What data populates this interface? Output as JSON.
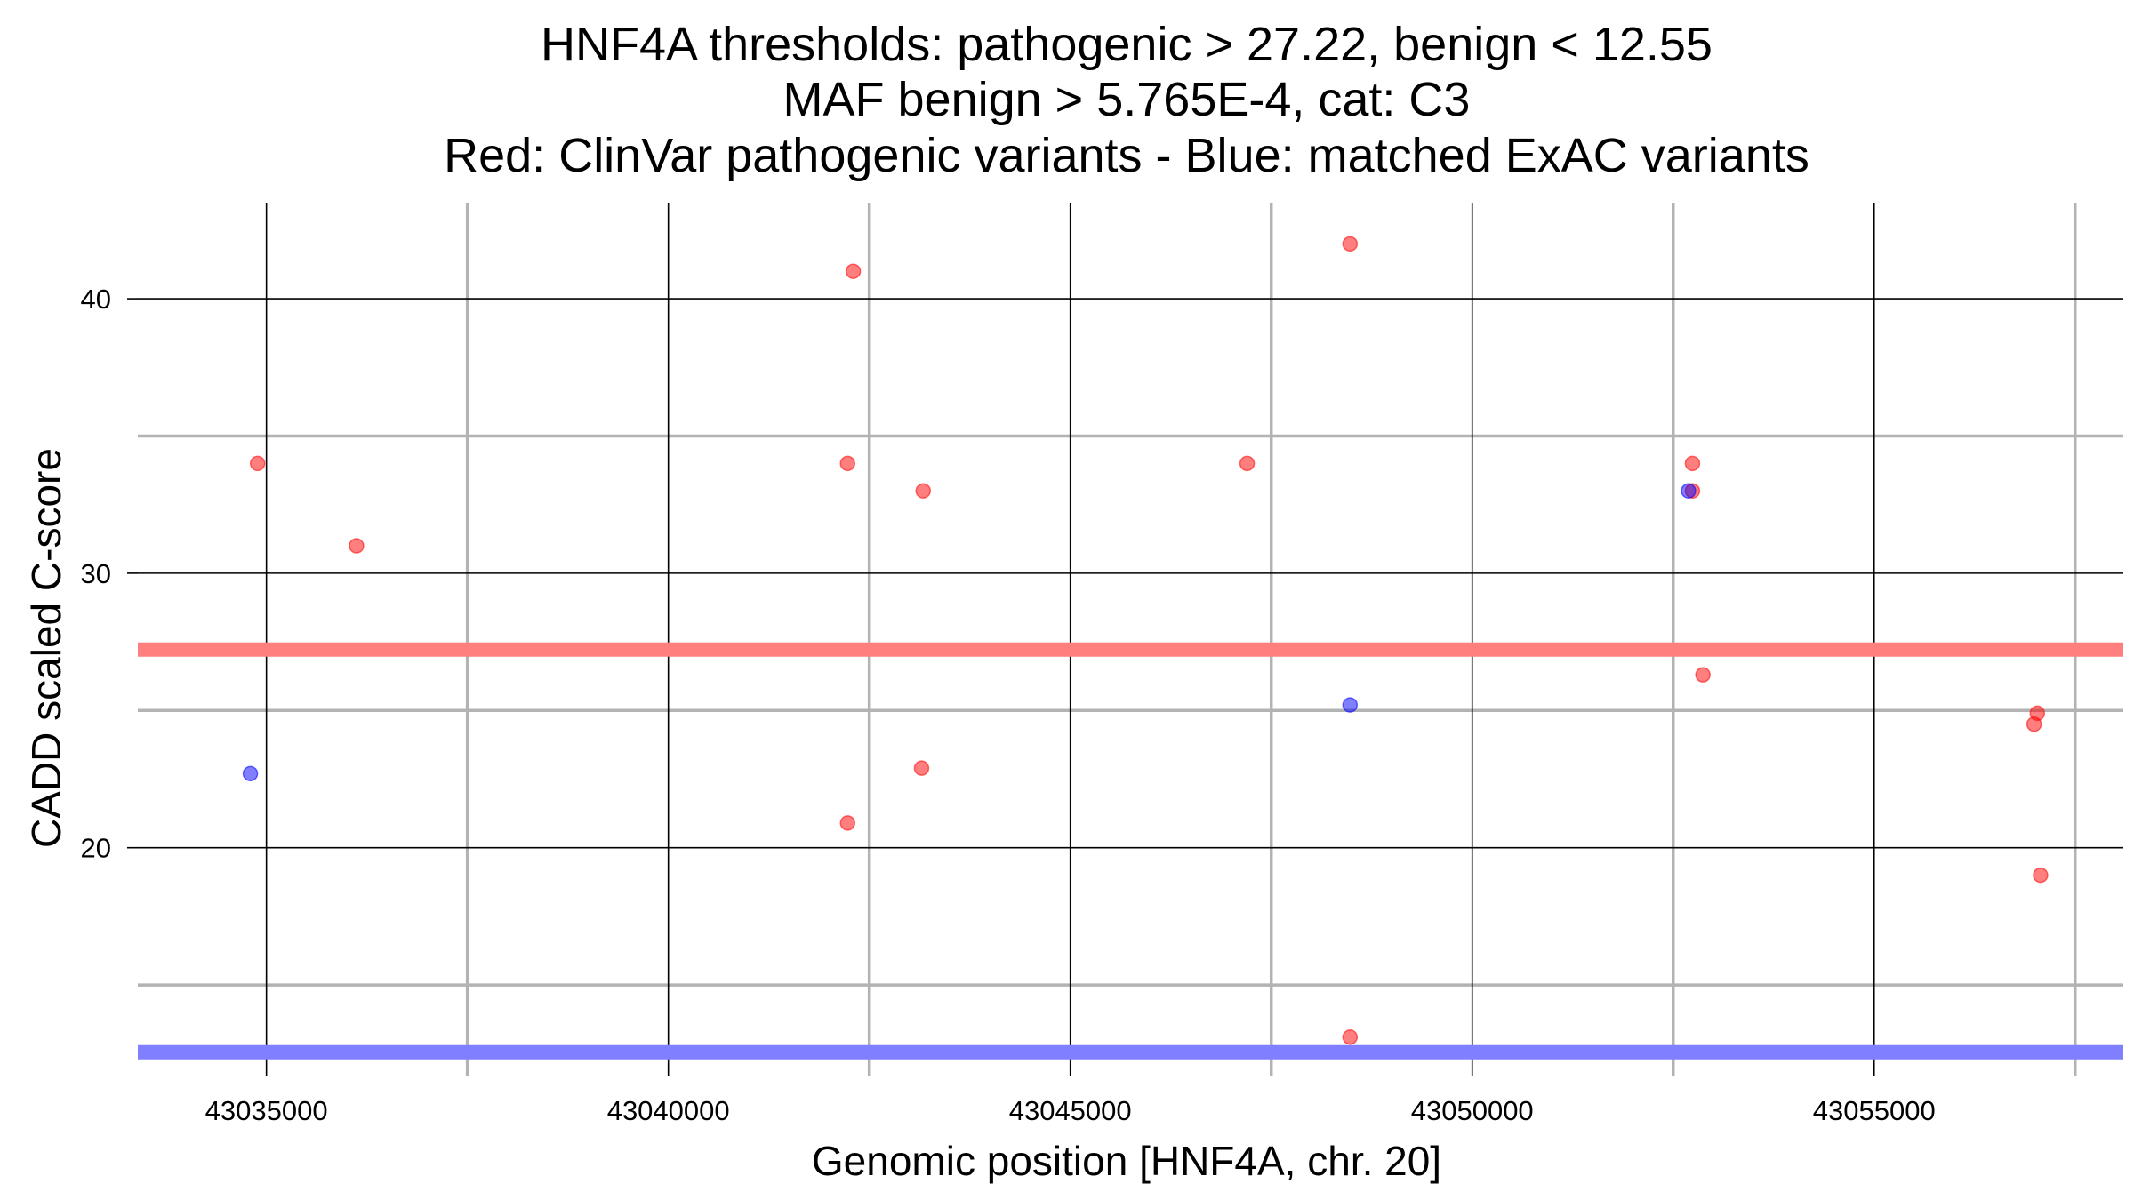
{
  "chart_data": {
    "type": "scatter",
    "title_lines": [
      "HNF4A thresholds: pathogenic > 27.22, benign < 12.55",
      "MAF benign > 5.765E-4, cat: C3",
      "Red: ClinVar pathogenic variants - Blue: matched ExAC variants"
    ],
    "xlabel": "Genomic position [HNF4A, chr. 20]",
    "ylabel": "CADD scaled C-score",
    "xlim": [
      43033400,
      43058100
    ],
    "ylim": [
      11.7,
      43.5
    ],
    "x_ticks": [
      43035000,
      43040000,
      43045000,
      43050000,
      43055000
    ],
    "x_minor_ticks": [
      43037500,
      43042500,
      43047500,
      43052500,
      43057500
    ],
    "y_ticks": [
      20,
      30,
      40
    ],
    "y_minor_ticks": [
      15,
      25,
      35
    ],
    "grid": true,
    "thresholds": [
      {
        "label": "pathogenic",
        "value": 27.22,
        "color": "#ff7f7f"
      },
      {
        "label": "benign",
        "value": 12.55,
        "color": "#7f7fff"
      }
    ],
    "series": [
      {
        "name": "ClinVar pathogenic variants",
        "color": "#ff0000",
        "points": [
          {
            "x": 43034890,
            "y": 34
          },
          {
            "x": 43036120,
            "y": 31
          },
          {
            "x": 43042230,
            "y": 34
          },
          {
            "x": 43042230,
            "y": 20.9
          },
          {
            "x": 43042300,
            "y": 41
          },
          {
            "x": 43043170,
            "y": 33
          },
          {
            "x": 43043150,
            "y": 22.9
          },
          {
            "x": 43047200,
            "y": 34
          },
          {
            "x": 43048480,
            "y": 42
          },
          {
            "x": 43048480,
            "y": 13.1
          },
          {
            "x": 43052740,
            "y": 34
          },
          {
            "x": 43052740,
            "y": 33
          },
          {
            "x": 43052870,
            "y": 26.3
          },
          {
            "x": 43057030,
            "y": 24.9
          },
          {
            "x": 43056990,
            "y": 24.5
          },
          {
            "x": 43057070,
            "y": 19
          }
        ]
      },
      {
        "name": "matched ExAC variants",
        "color": "#0000ff",
        "points": [
          {
            "x": 43034800,
            "y": 22.7
          },
          {
            "x": 43048480,
            "y": 25.2
          },
          {
            "x": 43052690,
            "y": 33
          }
        ]
      }
    ]
  }
}
